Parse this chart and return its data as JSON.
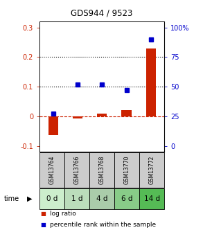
{
  "title": "GDS944 / 9523",
  "x_positions": [
    1,
    2,
    3,
    4,
    5
  ],
  "log_ratio": [
    -0.063,
    -0.008,
    0.01,
    0.02,
    0.228
  ],
  "percentile_rank": [
    27,
    52,
    52,
    47,
    90
  ],
  "gsm_labels": [
    "GSM13764",
    "GSM13766",
    "GSM13768",
    "GSM13770",
    "GSM13772"
  ],
  "time_labels": [
    "0 d",
    "1 d",
    "4 d",
    "6 d",
    "14 d"
  ],
  "ylim": [
    -0.12,
    0.32
  ],
  "yticks_left": [
    -0.1,
    0.0,
    0.1,
    0.2,
    0.3
  ],
  "yticks_right_vals": [
    0,
    25,
    50,
    75,
    100
  ],
  "yticks_right_pos": [
    -0.1,
    0.0,
    0.1,
    0.2,
    0.3
  ],
  "hlines": [
    0.1,
    0.2
  ],
  "bar_color": "#cc2200",
  "dot_color": "#0000cc",
  "gsm_bg": "#cccccc",
  "time_bg_colors": [
    "#cceecc",
    "#bbddbb",
    "#aaccaa",
    "#88cc88",
    "#55bb55"
  ],
  "legend_bar_label": "log ratio",
  "legend_dot_label": "percentile rank within the sample",
  "bar_width": 0.4
}
